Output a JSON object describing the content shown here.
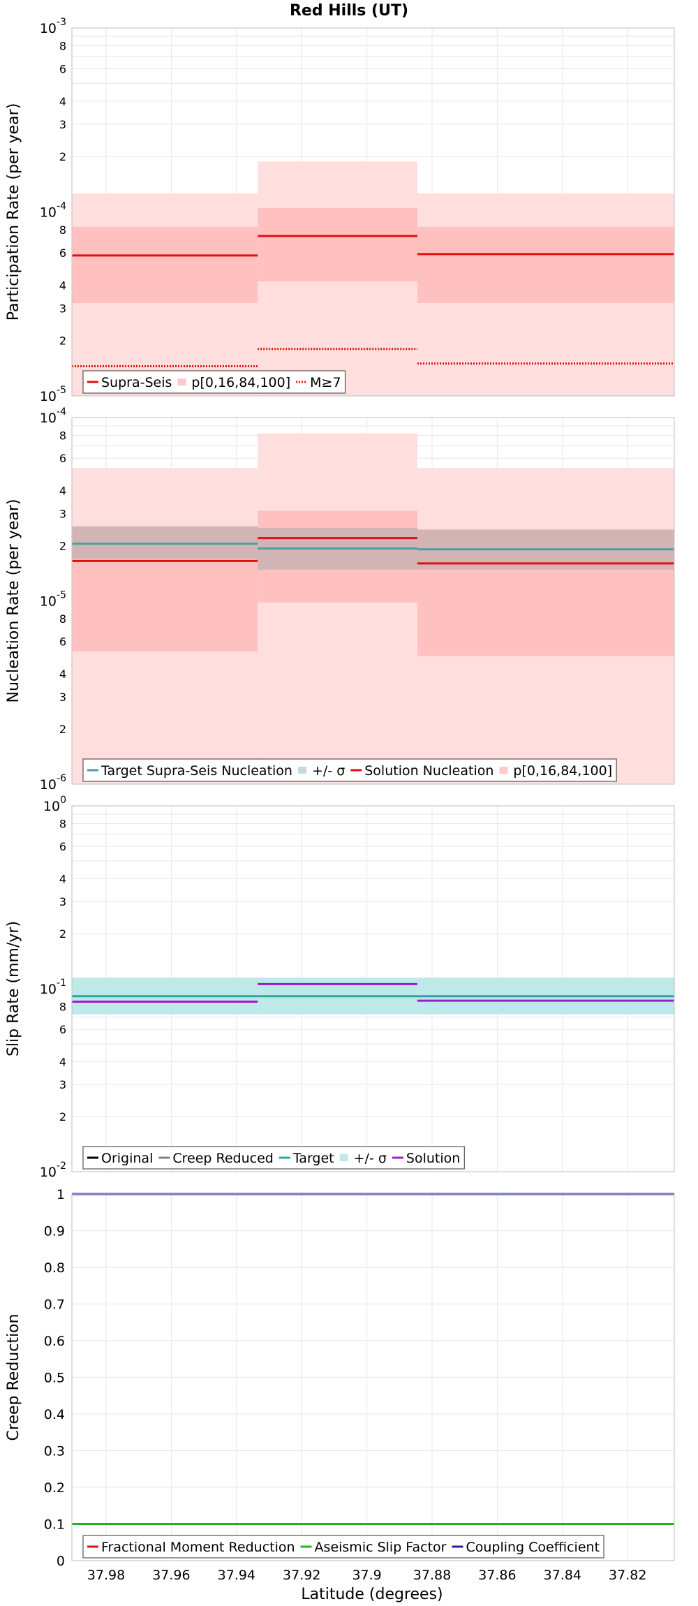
{
  "title": "Red Hills (UT)",
  "xlabel": "Latitude (degrees)",
  "x_ticks": [
    "37.98",
    "37.96",
    "37.94",
    "37.92",
    "37.9",
    "37.88",
    "37.86",
    "37.84",
    "37.82"
  ],
  "chart_data": [
    {
      "type": "line",
      "scale": "log",
      "ylabel": "Participation Rate (per year)",
      "ylim": [
        1e-05,
        0.001
      ],
      "x_range": [
        37.9905,
        37.8057
      ],
      "sections": [
        [
          37.9905,
          37.9335
        ],
        [
          37.9335,
          37.8845
        ],
        [
          37.8845,
          37.8057
        ]
      ],
      "bands": [
        {
          "name": "p[0,16,84,100] outer",
          "color": "#ffdede",
          "lower": [
            1e-05,
            1e-05,
            1e-05
          ],
          "upper": [
            0.000126,
            0.000188,
            0.000126
          ]
        },
        {
          "name": "p[0,16,84,100] inner",
          "color": "#ffc0c0",
          "lower": [
            3.2e-05,
            4.2e-05,
            3.2e-05
          ],
          "upper": [
            8.3e-05,
            0.000105,
            8.3e-05
          ]
        }
      ],
      "series": [
        {
          "name": "Supra-Seis",
          "style": "solid",
          "color": "#e01010",
          "values": [
            5.8e-05,
            7.4e-05,
            5.9e-05
          ]
        },
        {
          "name": "M≥7",
          "style": "dotted",
          "color": "#e01010",
          "values": [
            1.45e-05,
            1.8e-05,
            1.5e-05
          ]
        }
      ],
      "legend": [
        {
          "label": "Supra-Seis",
          "kind": "line",
          "color": "#e01010"
        },
        {
          "label": "p[0,16,84,100]",
          "kind": "band",
          "color": "#ffc8c8"
        },
        {
          "label": "M≥7",
          "kind": "dotted",
          "color": "#e01010"
        }
      ],
      "y_ticks_major": [
        {
          "base": "10",
          "exp": "-3",
          "value": 0.001
        },
        {
          "base": "10",
          "exp": "-4",
          "value": 0.0001
        },
        {
          "base": "10",
          "exp": "-5",
          "value": 1e-05
        }
      ],
      "y_ticks_minor": [
        "8",
        "6",
        "4",
        "3",
        "2"
      ]
    },
    {
      "type": "line",
      "scale": "log",
      "ylabel": "Nucleation Rate (per year)",
      "ylim": [
        1e-06,
        0.0001
      ],
      "x_range": [
        37.9905,
        37.8057
      ],
      "sections": [
        [
          37.9905,
          37.9335
        ],
        [
          37.9335,
          37.8845
        ],
        [
          37.8845,
          37.8057
        ]
      ],
      "bands": [
        {
          "name": "p outer",
          "color": "#ffdede",
          "lower": [
            1e-06,
            1e-06,
            1e-06
          ],
          "upper": [
            5.3e-05,
            8.2e-05,
            5.3e-05
          ]
        },
        {
          "name": "p inner",
          "color": "#ffc0c0",
          "lower": [
            5.3e-06,
            9.8e-06,
            5e-06
          ],
          "upper": [
            2.5e-05,
            3.1e-05,
            2.4e-05
          ]
        },
        {
          "name": "+/- σ",
          "color": "#d2b4b4",
          "lower": [
            1.7e-05,
            1.48e-05,
            1.48e-05
          ],
          "upper": [
            2.55e-05,
            2.5e-05,
            2.45e-05
          ]
        }
      ],
      "series": [
        {
          "name": "Target Supra-Seis Nucleation",
          "style": "solid",
          "color": "#4aa0a0",
          "values": [
            2.05e-05,
            1.93e-05,
            1.91e-05
          ]
        },
        {
          "name": "Solution Nucleation",
          "style": "solid",
          "color": "#e01010",
          "values": [
            1.65e-05,
            2.2e-05,
            1.6e-05
          ]
        }
      ],
      "legend": [
        {
          "label": "Target Supra-Seis Nucleation",
          "kind": "line",
          "color": "#4aa0a0"
        },
        {
          "label": "+/- σ",
          "kind": "band",
          "color": "#c8d8d8"
        },
        {
          "label": "Solution Nucleation",
          "kind": "line",
          "color": "#e01010"
        },
        {
          "label": "p[0,16,84,100]",
          "kind": "band",
          "color": "#ffc8c8"
        }
      ],
      "y_ticks_major": [
        {
          "base": "10",
          "exp": "-4",
          "value": 0.0001
        },
        {
          "base": "10",
          "exp": "-5",
          "value": 1e-05
        },
        {
          "base": "10",
          "exp": "-6",
          "value": 1e-06
        }
      ],
      "y_ticks_minor": [
        "8",
        "6",
        "4",
        "3",
        "2"
      ]
    },
    {
      "type": "line",
      "scale": "log",
      "ylabel": "Slip Rate (mm/yr)",
      "ylim": [
        0.01,
        1
      ],
      "x_range": [
        37.9905,
        37.8057
      ],
      "sections": [
        [
          37.9905,
          37.9335
        ],
        [
          37.9335,
          37.8845
        ],
        [
          37.8845,
          37.8057
        ]
      ],
      "bands": [
        {
          "name": "+/- σ",
          "color": "#bfe9e9",
          "lower": [
            0.0725,
            0.0725,
            0.0725
          ],
          "upper": [
            0.115,
            0.115,
            0.115
          ]
        }
      ],
      "series": [
        {
          "name": "Target",
          "style": "solid",
          "color": "#2aa6a0",
          "values": [
            0.091,
            0.091,
            0.091
          ]
        },
        {
          "name": "Solution",
          "style": "solid",
          "color": "#9a1ec8",
          "values": [
            0.085,
            0.106,
            0.086
          ]
        }
      ],
      "legend": [
        {
          "label": "Original",
          "kind": "line",
          "color": "#000000"
        },
        {
          "label": "Creep Reduced",
          "kind": "line",
          "color": "#808080"
        },
        {
          "label": "Target",
          "kind": "line",
          "color": "#2aa6a0"
        },
        {
          "label": "+/- σ",
          "kind": "band",
          "color": "#bfe9e9"
        },
        {
          "label": "Solution",
          "kind": "line",
          "color": "#9a1ec8"
        }
      ],
      "y_ticks_major": [
        {
          "base": "10",
          "exp": "0",
          "value": 1
        },
        {
          "base": "10",
          "exp": "-1",
          "value": 0.1
        },
        {
          "base": "10",
          "exp": "-2",
          "value": 0.01
        }
      ],
      "y_ticks_minor": [
        "8",
        "6",
        "4",
        "3",
        "2"
      ]
    },
    {
      "type": "line",
      "scale": "linear",
      "ylabel": "Creep Reduction",
      "ylim": [
        0,
        1
      ],
      "x_range": [
        37.9905,
        37.8057
      ],
      "bands": [],
      "series": [
        {
          "name": "Coupling Coefficient",
          "style": "solid",
          "color": "#2020a0",
          "values": [
            1,
            1,
            1
          ]
        },
        {
          "name": "Aseismic Slip Factor",
          "style": "solid",
          "color": "#20b020",
          "values": [
            0.1,
            0.1,
            0.1
          ]
        }
      ],
      "legend": [
        {
          "label": "Fractional Moment Reduction",
          "kind": "line",
          "color": "#e01010"
        },
        {
          "label": "Aseismic Slip Factor",
          "kind": "line",
          "color": "#20b020"
        },
        {
          "label": "Coupling Coefficient",
          "kind": "line",
          "color": "#2020a0"
        }
      ],
      "y_ticks": [
        "1",
        "0.9",
        "0.8",
        "0.7",
        "0.6",
        "0.5",
        "0.4",
        "0.3",
        "0.2",
        "0.1",
        "0"
      ]
    }
  ]
}
